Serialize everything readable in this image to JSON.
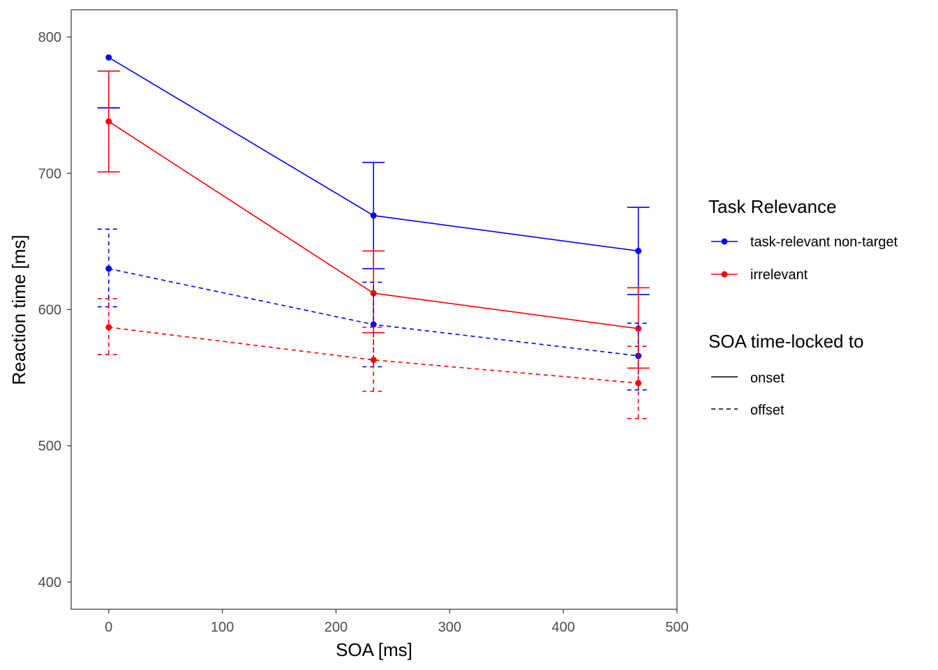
{
  "chart_data": {
    "type": "line",
    "xlabel": "SOA [ms]",
    "ylabel": "Reaction time [ms]",
    "xlim": [
      -33,
      500
    ],
    "ylim": [
      380,
      820
    ],
    "xticks": [
      0,
      100,
      200,
      300,
      400,
      500
    ],
    "yticks": [
      400,
      500,
      600,
      700,
      800
    ],
    "grid": false,
    "legend_position": "right",
    "legends": [
      {
        "title": "Task Relevance",
        "entries": [
          {
            "label": "task-relevant non-target",
            "color": "#0000ff"
          },
          {
            "label": "irrelevant",
            "color": "#ff0000"
          }
        ]
      },
      {
        "title": "SOA time-locked to",
        "entries": [
          {
            "label": "onset",
            "linetype": "solid"
          },
          {
            "label": "offset",
            "linetype": "dashed"
          }
        ]
      }
    ],
    "series": [
      {
        "relevance": "task-relevant non-target",
        "locking": "onset",
        "color": "#0000ff",
        "linetype": "solid",
        "x": [
          0,
          233,
          466
        ],
        "y": [
          785,
          669,
          643
        ],
        "err_low": [
          748,
          630,
          611
        ],
        "err_high": [
          748,
          708,
          675
        ]
      },
      {
        "relevance": "irrelevant",
        "locking": "onset",
        "color": "#ff0000",
        "linetype": "solid",
        "x": [
          0,
          233,
          466
        ],
        "y": [
          738,
          612,
          586
        ],
        "err_low": [
          701,
          583,
          557
        ],
        "err_high": [
          775,
          643,
          616
        ]
      },
      {
        "relevance": "task-relevant non-target",
        "locking": "offset",
        "color": "#0000ff",
        "linetype": "dashed",
        "x": [
          0,
          233,
          466
        ],
        "y": [
          630,
          589,
          566
        ],
        "err_low": [
          602,
          558,
          541
        ],
        "err_high": [
          659,
          620,
          590
        ]
      },
      {
        "relevance": "irrelevant",
        "locking": "offset",
        "color": "#ff0000",
        "linetype": "dashed",
        "x": [
          0,
          233,
          466
        ],
        "y": [
          587,
          563,
          546
        ],
        "err_low": [
          567,
          540,
          520
        ],
        "err_high": [
          608,
          587,
          573
        ]
      }
    ]
  }
}
